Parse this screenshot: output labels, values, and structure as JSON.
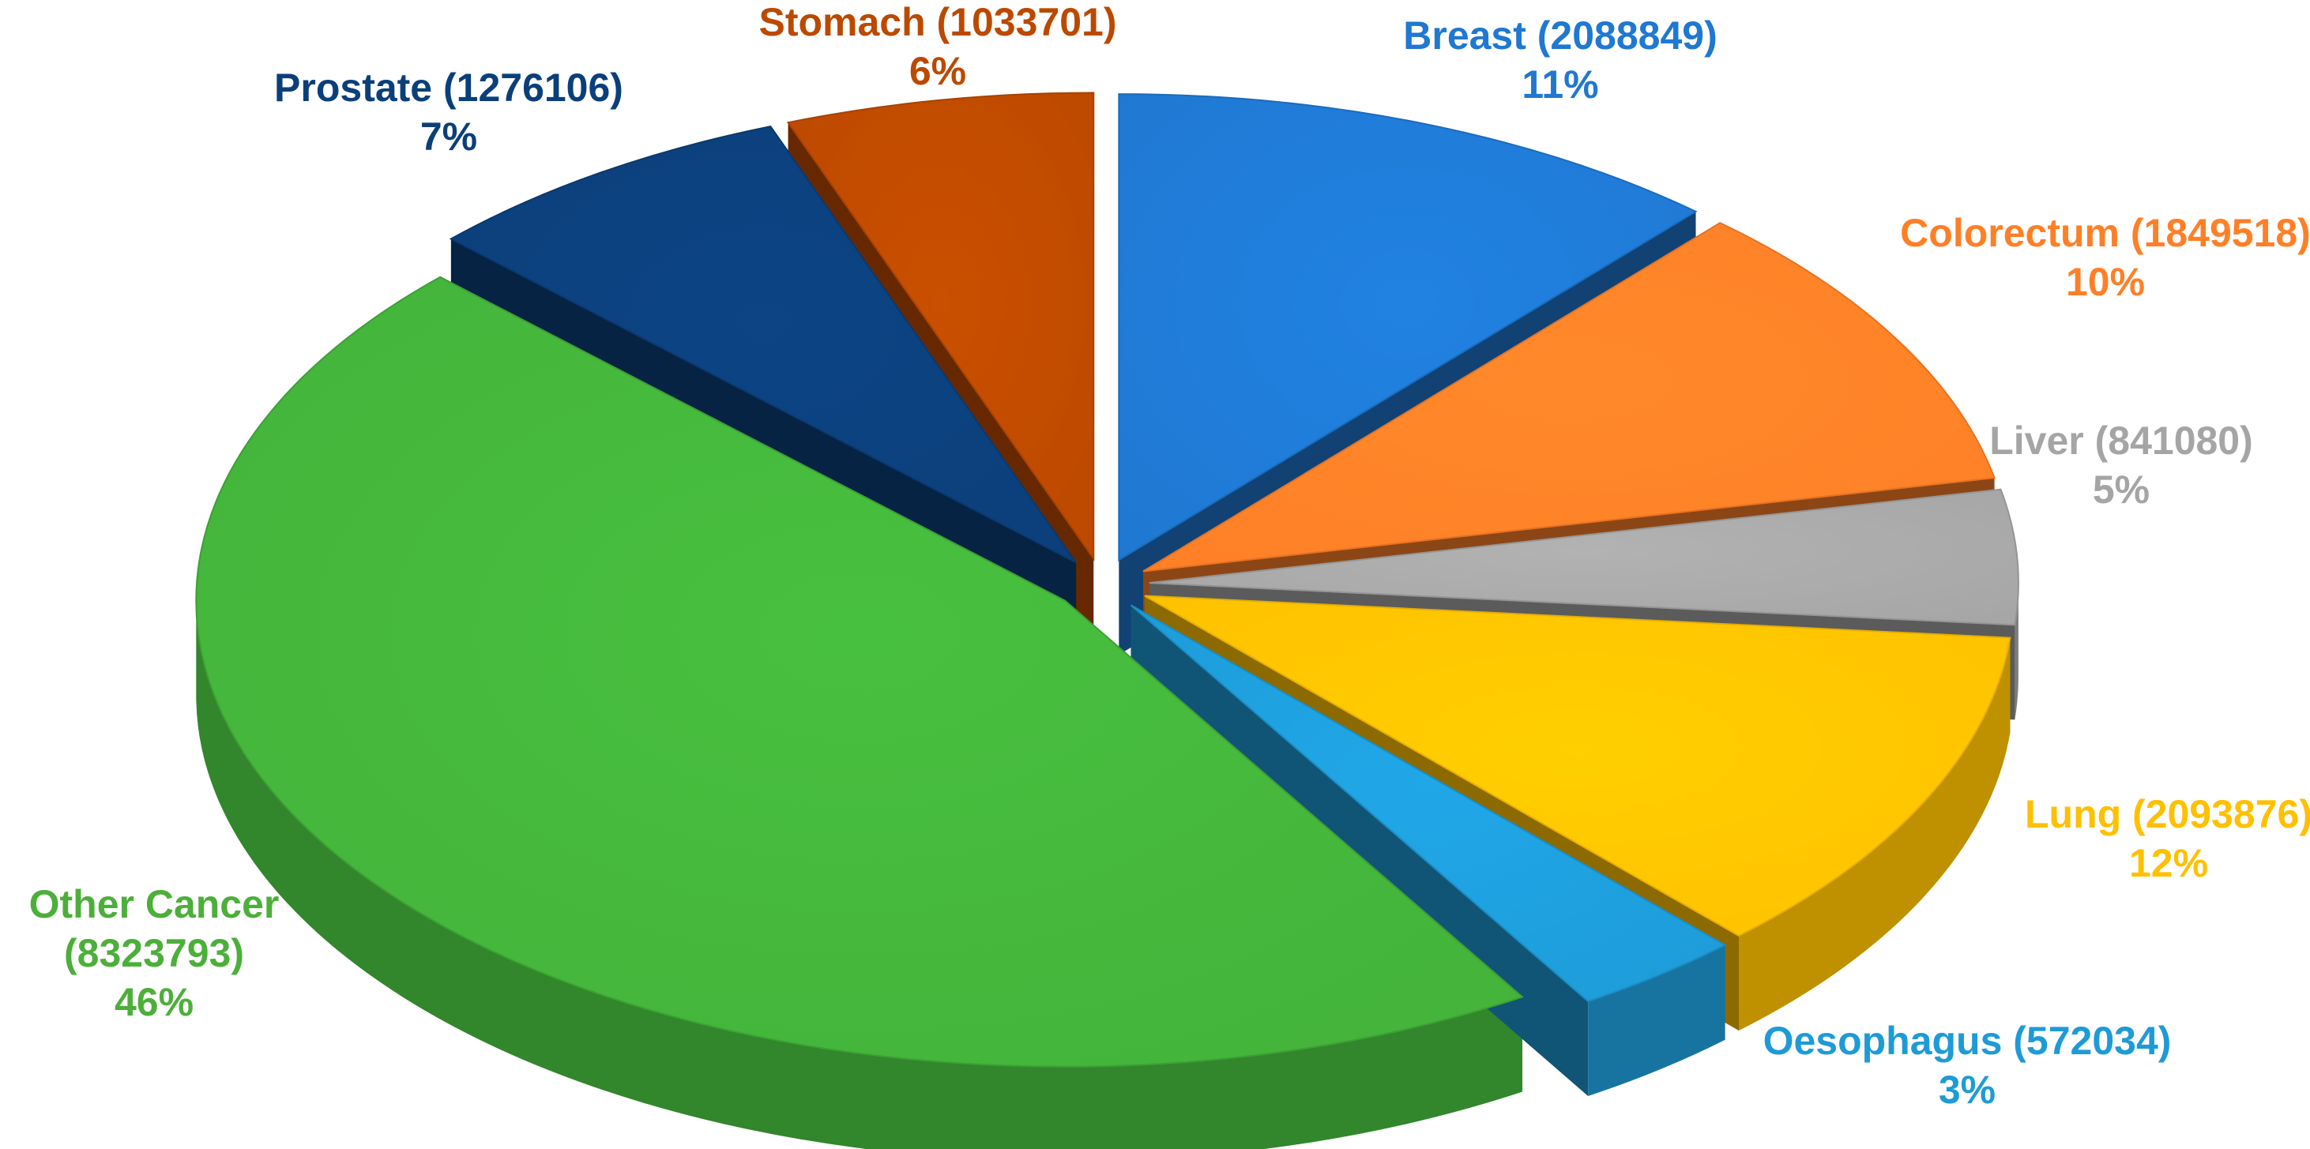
{
  "chart_data": {
    "type": "pie",
    "title": "",
    "style": "3d-exploded",
    "legend": "none",
    "slices": [
      {
        "name": "Breast",
        "value": 2088849,
        "label": "Breast (2088849)",
        "percent": "11%",
        "color": "#1F78D1",
        "label_color": "#1F78D1"
      },
      {
        "name": "Colorectum",
        "value": 1849518,
        "label": "Colorectum (1849518)",
        "percent": "10%",
        "color": "#FF7F27",
        "label_color": "#FF7F27"
      },
      {
        "name": "Liver",
        "value": 841080,
        "label": "Liver (841080)",
        "percent": "5%",
        "color": "#A5A5A5",
        "label_color": "#A5A5A5"
      },
      {
        "name": "Lung",
        "value": 2093876,
        "label": "Lung (2093876)",
        "percent": "12%",
        "color": "#FFC000",
        "label_color": "#FFC000"
      },
      {
        "name": "Oesophagus",
        "value": 572034,
        "label": "Oesophagus (572034)",
        "percent": "3%",
        "color": "#1E9BD7",
        "label_color": "#1E9BD7"
      },
      {
        "name": "Other Cancer",
        "value": 8323793,
        "label": "Other Cancer (8323793)",
        "percent": "46%",
        "color": "#43B23A",
        "label_color": "#4CAF3A"
      },
      {
        "name": "Prostate",
        "value": 1276106,
        "label": "Prostate (1276106)",
        "percent": "7%",
        "color": "#0B3F7A",
        "label_color": "#0B3F7A"
      },
      {
        "name": "Stomach",
        "value": 1033701,
        "label": "Stomach (1033701)",
        "percent": "6%",
        "color": "#BB4900",
        "label_color": "#BB4900"
      }
    ]
  }
}
